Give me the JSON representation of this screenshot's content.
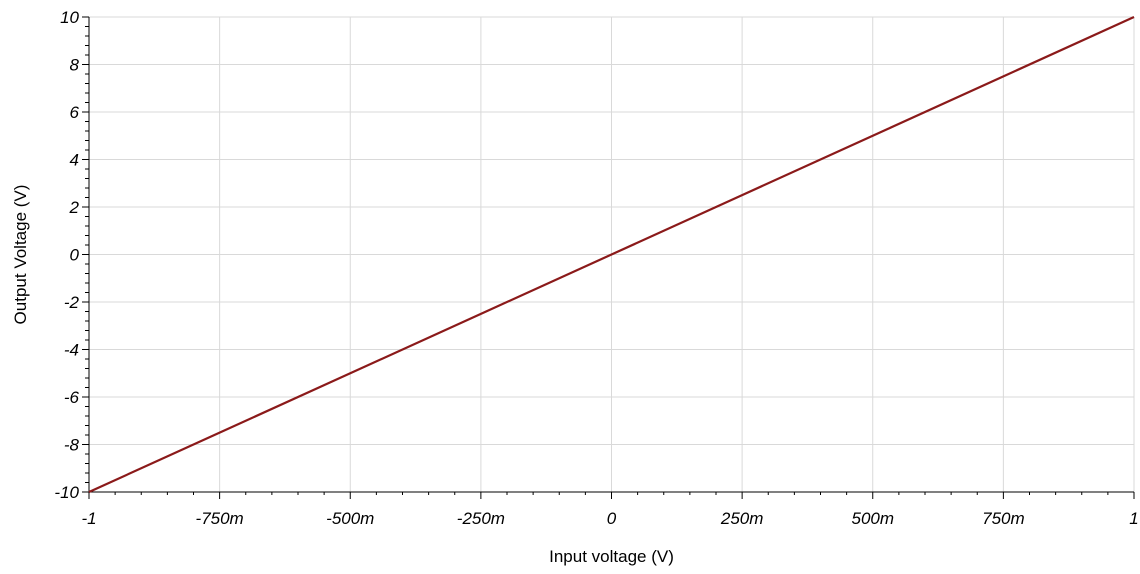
{
  "chart_data": {
    "type": "line",
    "title": "",
    "xlabel": "Input voltage (V)",
    "ylabel": "Output Voltage (V)",
    "xlim": [
      -1,
      1
    ],
    "ylim": [
      -10,
      10
    ],
    "grid": true,
    "x_ticks": [
      {
        "value": -1,
        "label": "-1"
      },
      {
        "value": -0.75,
        "label": "-750m"
      },
      {
        "value": -0.5,
        "label": "-500m"
      },
      {
        "value": -0.25,
        "label": "-250m"
      },
      {
        "value": 0,
        "label": "0"
      },
      {
        "value": 0.25,
        "label": "250m"
      },
      {
        "value": 0.5,
        "label": "500m"
      },
      {
        "value": 0.75,
        "label": "750m"
      },
      {
        "value": 1,
        "label": "1"
      }
    ],
    "y_ticks": [
      {
        "value": -10,
        "label": "-10"
      },
      {
        "value": -8,
        "label": "-8"
      },
      {
        "value": -6,
        "label": "-6"
      },
      {
        "value": -4,
        "label": "-4"
      },
      {
        "value": -2,
        "label": "-2"
      },
      {
        "value": 0,
        "label": "0"
      },
      {
        "value": 2,
        "label": "2"
      },
      {
        "value": 4,
        "label": "4"
      },
      {
        "value": 6,
        "label": "6"
      },
      {
        "value": 8,
        "label": "8"
      },
      {
        "value": 10,
        "label": "10"
      }
    ],
    "series": [
      {
        "color": "#8b1a1a",
        "x": [
          -1,
          -0.75,
          -0.5,
          -0.25,
          0,
          0.25,
          0.5,
          0.75,
          1
        ],
        "y": [
          -10,
          -7.5,
          -5,
          -2.5,
          0,
          2.5,
          5,
          7.5,
          10
        ]
      }
    ],
    "colors": {
      "grid": "#d9d9d9",
      "axis": "#000000",
      "line": "#8b1a1a"
    }
  }
}
